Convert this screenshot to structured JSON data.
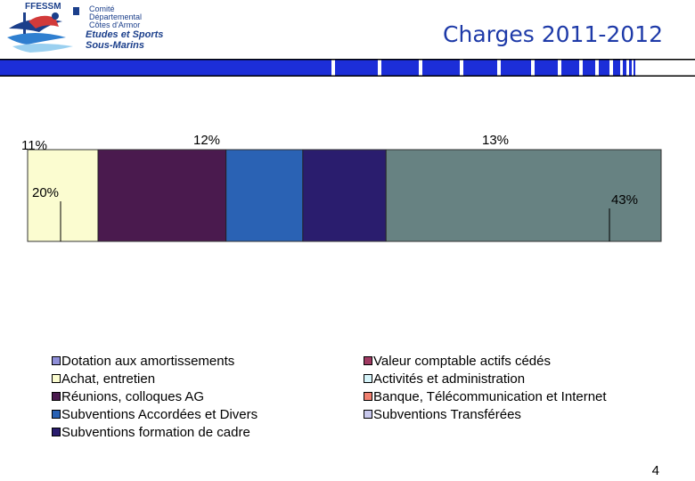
{
  "header": {
    "logo_acronym": "FFESSM",
    "logo_lines": [
      "Comité",
      "Départemental",
      "Côtes d'Armor",
      "Etudes et Sports",
      "Sous-Marins"
    ],
    "title": "Charges 2011-2012",
    "band_color": "#1c2ed8"
  },
  "chart_data": {
    "type": "bar",
    "orientation": "horizontal-stacked",
    "series": [
      {
        "name": "Dotation aux amortissements",
        "value": 0,
        "color": "#8f8fd8"
      },
      {
        "name": "Valeur comptable actifs cédés",
        "value": 0,
        "color": "#a03a62"
      },
      {
        "name": "Achat, entretien",
        "value": 11,
        "color": "#fbfcd0"
      },
      {
        "name": "Activités et administration",
        "value": 0,
        "color": "#d6f4fa"
      },
      {
        "name": "Réunions, colloques AG",
        "value": 20,
        "color": "#4a1a4e"
      },
      {
        "name": "Banque, Télécommunication et Internet",
        "value": 0,
        "color": "#f08070"
      },
      {
        "name": "Subventions Accordées et Divers",
        "value": 12,
        "color": "#2a62b4"
      },
      {
        "name": "Subventions Transférées",
        "value": 0,
        "color": "#c8c8ec"
      },
      {
        "name": "Subventions formation de cadre",
        "value": 13,
        "color": "#2a1d6e"
      },
      {
        "name": "",
        "value": 43,
        "color": "#678282"
      }
    ],
    "data_labels": [
      "11%",
      "20%",
      "12%",
      "13%",
      "43%"
    ],
    "legend_columns": [
      [
        "Dotation aux amortissements",
        "Achat, entretien",
        "Réunions, colloques AG",
        "Subventions Accordées et Divers",
        "Subventions formation de cadre"
      ],
      [
        "Valeur comptable actifs cédés",
        "Activités et administration",
        "Banque, Télécommunication et Internet",
        "Subventions Transférées"
      ]
    ],
    "legend_placement": "bottom",
    "grid": false
  },
  "footer": {
    "page_number": "4"
  }
}
